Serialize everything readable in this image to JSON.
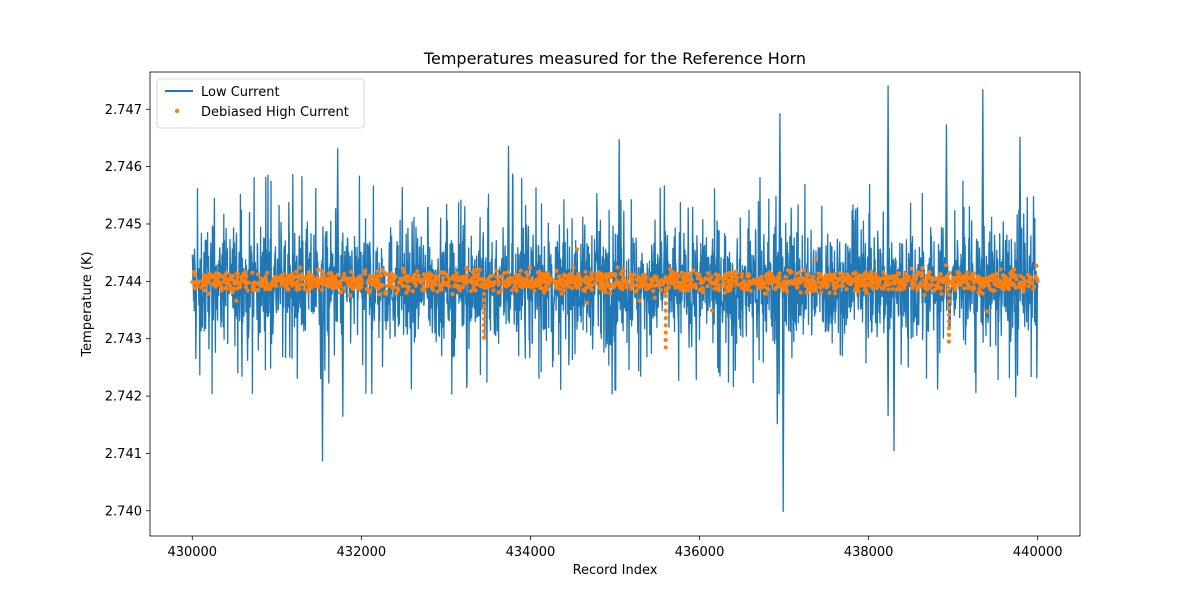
{
  "chart_data": {
    "type": "line+scatter",
    "title": "Temperatures measured for the Reference Horn",
    "xlabel": "Record Index",
    "ylabel": "Temperature (K)",
    "xlim": [
      429500,
      440500
    ],
    "ylim": [
      2.73956,
      2.74765
    ],
    "x_ticks": [
      430000,
      432000,
      434000,
      436000,
      438000,
      440000
    ],
    "x_tick_labels": [
      "430000",
      "432000",
      "434000",
      "436000",
      "438000",
      "440000"
    ],
    "y_ticks": [
      2.74,
      2.741,
      2.742,
      2.743,
      2.744,
      2.745,
      2.746,
      2.747
    ],
    "y_tick_labels": [
      "2.740",
      "2.741",
      "2.742",
      "2.743",
      "2.744",
      "2.745",
      "2.746",
      "2.747"
    ],
    "legend_position": "top-left",
    "series": [
      {
        "name": "Low Current",
        "kind": "line",
        "color": "#1f77b4",
        "x_range": [
          430000,
          440000
        ],
        "baseline": 2.74395,
        "typical_band": [
          2.7428,
          2.7452
        ],
        "spikes": [
          {
            "x": 431720,
            "y": 2.74632
          },
          {
            "x": 433740,
            "y": 2.74636
          },
          {
            "x": 435050,
            "y": 2.74648
          },
          {
            "x": 436950,
            "y": 2.74693
          },
          {
            "x": 438230,
            "y": 2.74742
          },
          {
            "x": 438920,
            "y": 2.74674
          },
          {
            "x": 439350,
            "y": 2.74735
          },
          {
            "x": 439790,
            "y": 2.74652
          },
          {
            "x": 431540,
            "y": 2.74086
          },
          {
            "x": 431780,
            "y": 2.74164
          },
          {
            "x": 436920,
            "y": 2.74151
          },
          {
            "x": 436990,
            "y": 2.73998
          },
          {
            "x": 438230,
            "y": 2.74165
          },
          {
            "x": 438300,
            "y": 2.74104
          },
          {
            "x": 439740,
            "y": 2.74198
          }
        ]
      },
      {
        "name": "Debiased High Current",
        "kind": "scatter",
        "color": "#ff7f0e",
        "x_range": [
          430000,
          440000
        ],
        "center": 2.744,
        "typical_band": [
          2.7438,
          2.7442
        ],
        "dips": [
          {
            "x": 433450,
            "y": 2.74302
          },
          {
            "x": 435600,
            "y": 2.74285
          },
          {
            "x": 438950,
            "y": 2.74295
          }
        ]
      }
    ]
  }
}
